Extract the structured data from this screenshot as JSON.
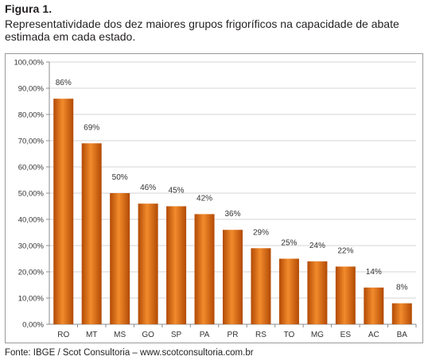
{
  "figure": {
    "label": "Figura 1.",
    "caption": "Representatividade dos dez maiores grupos frigoríficos na capacidade de abate estimada em cada estado."
  },
  "source": "Fonte: IBGE / Scot Consultoria – www.scotconsultoria.com.br",
  "colors": {
    "bar_light": "#f28b2c",
    "bar_dark": "#b24a05",
    "grid": "#d4d4d4",
    "axis": "#8c8c8c"
  },
  "chart_data": {
    "type": "bar",
    "categories": [
      "RO",
      "MT",
      "MS",
      "GO",
      "SP",
      "PA",
      "PR",
      "RS",
      "TO",
      "MG",
      "ES",
      "AC",
      "BA"
    ],
    "values": [
      86,
      69,
      50,
      46,
      45,
      42,
      36,
      29,
      25,
      24,
      22,
      14,
      8
    ],
    "data_labels": [
      "86%",
      "69%",
      "50%",
      "46%",
      "45%",
      "42%",
      "36%",
      "29%",
      "25%",
      "24%",
      "22%",
      "14%",
      "8%"
    ],
    "y_ticks": [
      0,
      10,
      20,
      30,
      40,
      50,
      60,
      70,
      80,
      90,
      100
    ],
    "y_tick_labels": [
      "0,00%",
      "10,00%",
      "20,00%",
      "30,00%",
      "40,00%",
      "50,00%",
      "60,00%",
      "70,00%",
      "80,00%",
      "90,00%",
      "100,00%"
    ],
    "ylim": [
      0,
      100
    ],
    "title": "",
    "xlabel": "",
    "ylabel": "",
    "grid": true
  }
}
